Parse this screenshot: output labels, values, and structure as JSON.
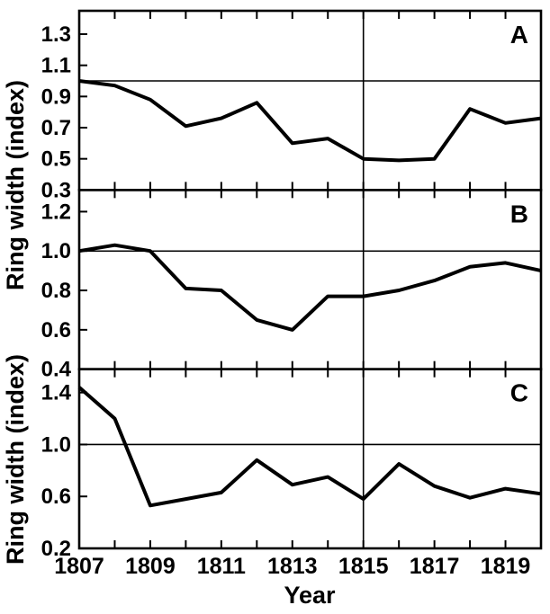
{
  "figure": {
    "xlabel": "Year",
    "ylabel_top": "Ring width (index)",
    "ylabel_bottom": "Ring width (index)",
    "background": "#ffffff",
    "line_color": "#000000"
  },
  "x_axis": {
    "label": "Year",
    "xlim": [
      1807,
      1820
    ],
    "major_tick_labels": [
      1807,
      1809,
      1811,
      1813,
      1815,
      1817,
      1819
    ],
    "tick_years": [
      1807,
      1808,
      1809,
      1810,
      1811,
      1812,
      1813,
      1814,
      1815,
      1816,
      1817,
      1818,
      1819,
      1820
    ]
  },
  "chart_data": [
    {
      "type": "line",
      "panel_label": "A",
      "ylabel": "Ring width (index)",
      "x": [
        1807,
        1808,
        1809,
        1810,
        1811,
        1812,
        1813,
        1814,
        1815,
        1816,
        1817,
        1818,
        1819,
        1820
      ],
      "values": [
        1.0,
        0.97,
        0.88,
        0.71,
        0.76,
        0.86,
        0.6,
        0.63,
        0.5,
        0.49,
        0.5,
        0.82,
        0.73,
        0.76
      ],
      "ylim": [
        0.3,
        1.45
      ],
      "yticks": [
        0.3,
        0.5,
        0.7,
        0.9,
        1.1,
        1.3
      ],
      "ref_line_y": 1.0,
      "ref_line_x": 1815
    },
    {
      "type": "line",
      "panel_label": "B",
      "ylabel": "Ring width (index)",
      "x": [
        1807,
        1808,
        1809,
        1810,
        1811,
        1812,
        1813,
        1814,
        1815,
        1816,
        1817,
        1818,
        1819,
        1820
      ],
      "values": [
        1.0,
        1.03,
        1.0,
        0.81,
        0.8,
        0.65,
        0.6,
        0.77,
        0.77,
        0.8,
        0.85,
        0.92,
        0.94,
        0.9
      ],
      "ylim": [
        0.4,
        1.31
      ],
      "yticks": [
        0.4,
        0.6,
        0.8,
        1.0,
        1.2
      ],
      "ref_line_y": 1.0,
      "ref_line_x": 1815
    },
    {
      "type": "line",
      "panel_label": "C",
      "ylabel": "Ring width (index)",
      "x": [
        1807,
        1808,
        1809,
        1810,
        1811,
        1812,
        1813,
        1814,
        1815,
        1816,
        1817,
        1818,
        1819,
        1820
      ],
      "values": [
        1.44,
        1.2,
        0.53,
        0.58,
        0.63,
        0.88,
        0.69,
        0.75,
        0.58,
        0.85,
        0.68,
        0.59,
        0.66,
        0.62
      ],
      "ylim": [
        0.2,
        1.58
      ],
      "yticks": [
        0.2,
        0.6,
        1.0,
        1.4
      ],
      "ref_line_y": 1.0,
      "ref_line_x": 1815
    }
  ]
}
